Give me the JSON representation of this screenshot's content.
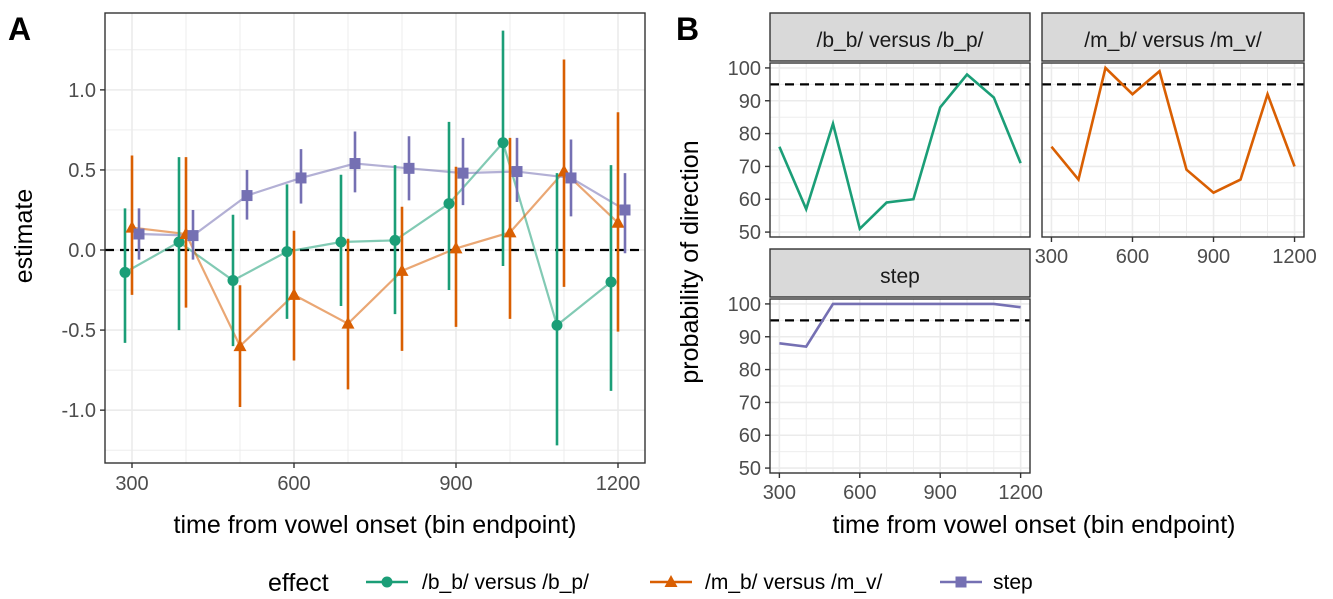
{
  "panel_a": {
    "tag": "A",
    "xlabel": "time from vowel onset (bin endpoint)",
    "ylabel": "estimate"
  },
  "panel_b": {
    "tag": "B",
    "xlabel": "time from vowel onset (bin endpoint)",
    "ylabel": "probability of direction"
  },
  "legend": {
    "title": "effect",
    "entries": [
      "/b_b/ versus /b_p/",
      "/m_b/ versus /m_v/",
      "step"
    ]
  },
  "colors": {
    "bb": "#1b9e77",
    "mb": "#d95f02",
    "step": "#7570b3",
    "grid": "#ebebeb",
    "strip": "#d9d9d9"
  },
  "chart_data": [
    {
      "type": "line",
      "panel": "A",
      "x": [
        300,
        400,
        500,
        600,
        700,
        800,
        900,
        1000,
        1100,
        1200
      ],
      "xticks": [
        300,
        600,
        900,
        1200
      ],
      "yticks": [
        -1.0,
        -0.5,
        0.0,
        0.5,
        1.0
      ],
      "xlim": [
        250,
        1250
      ],
      "ylim": [
        -1.33,
        1.48
      ],
      "reference_line": 0,
      "xlabel": "time from vowel onset (bin endpoint)",
      "ylabel": "estimate",
      "series": [
        {
          "name": "/b_b/ versus /b_p/",
          "marker": "circle",
          "values": [
            -0.14,
            0.05,
            -0.19,
            -0.01,
            0.05,
            0.06,
            0.29,
            0.67,
            -0.47,
            -0.2
          ],
          "lower": [
            -0.58,
            -0.5,
            -0.6,
            -0.43,
            -0.35,
            -0.4,
            -0.25,
            -0.1,
            -1.22,
            -0.88
          ],
          "upper": [
            0.26,
            0.58,
            0.22,
            0.41,
            0.47,
            0.53,
            0.8,
            1.37,
            0.48,
            0.53
          ]
        },
        {
          "name": "/m_b/ versus /m_v/",
          "marker": "triangle",
          "values": [
            0.14,
            0.1,
            -0.6,
            -0.28,
            -0.46,
            -0.13,
            0.01,
            0.11,
            0.49,
            0.17
          ],
          "lower": [
            -0.28,
            -0.36,
            -0.98,
            -0.69,
            -0.87,
            -0.63,
            -0.48,
            -0.43,
            -0.23,
            -0.51
          ],
          "upper": [
            0.59,
            0.58,
            -0.22,
            0.12,
            0.07,
            0.27,
            0.52,
            0.7,
            1.19,
            0.86
          ]
        },
        {
          "name": "step",
          "marker": "square",
          "values": [
            0.1,
            0.09,
            0.34,
            0.45,
            0.54,
            0.51,
            0.48,
            0.49,
            0.45,
            0.25
          ],
          "lower": [
            -0.06,
            -0.06,
            0.19,
            0.29,
            0.36,
            0.31,
            0.28,
            0.3,
            0.21,
            -0.02
          ],
          "upper": [
            0.26,
            0.25,
            0.5,
            0.63,
            0.74,
            0.71,
            0.7,
            0.7,
            0.69,
            0.48
          ]
        }
      ]
    },
    {
      "type": "line",
      "panel": "B",
      "facet": "/b_b/ versus /b_p/",
      "x": [
        300,
        400,
        500,
        600,
        700,
        800,
        900,
        1000,
        1100,
        1200
      ],
      "values": [
        76,
        57,
        83,
        51,
        59,
        60,
        88,
        98,
        91,
        71
      ],
      "ylim": [
        48.5,
        101.5
      ],
      "yticks": [
        50,
        60,
        70,
        80,
        90,
        100
      ],
      "xticks": [
        300,
        600,
        900,
        1200
      ],
      "reference_line": 95
    },
    {
      "type": "line",
      "panel": "B",
      "facet": "/m_b/ versus /m_v/",
      "x": [
        300,
        400,
        500,
        600,
        700,
        800,
        900,
        1000,
        1100,
        1200
      ],
      "values": [
        76,
        66,
        100,
        92,
        99,
        69,
        62,
        66,
        92,
        70
      ],
      "ylim": [
        48.5,
        101.5
      ],
      "yticks": [
        50,
        60,
        70,
        80,
        90,
        100
      ],
      "xticks": [
        300,
        600,
        900,
        1200
      ],
      "reference_line": 95
    },
    {
      "type": "line",
      "panel": "B",
      "facet": "step",
      "x": [
        300,
        400,
        500,
        600,
        700,
        800,
        900,
        1000,
        1100,
        1200
      ],
      "values": [
        88,
        87,
        100,
        100,
        100,
        100,
        100,
        100,
        100,
        99
      ],
      "ylim": [
        48.5,
        101.5
      ],
      "yticks": [
        50,
        60,
        70,
        80,
        90,
        100
      ],
      "xticks": [
        300,
        600,
        900,
        1200
      ],
      "reference_line": 95
    }
  ]
}
